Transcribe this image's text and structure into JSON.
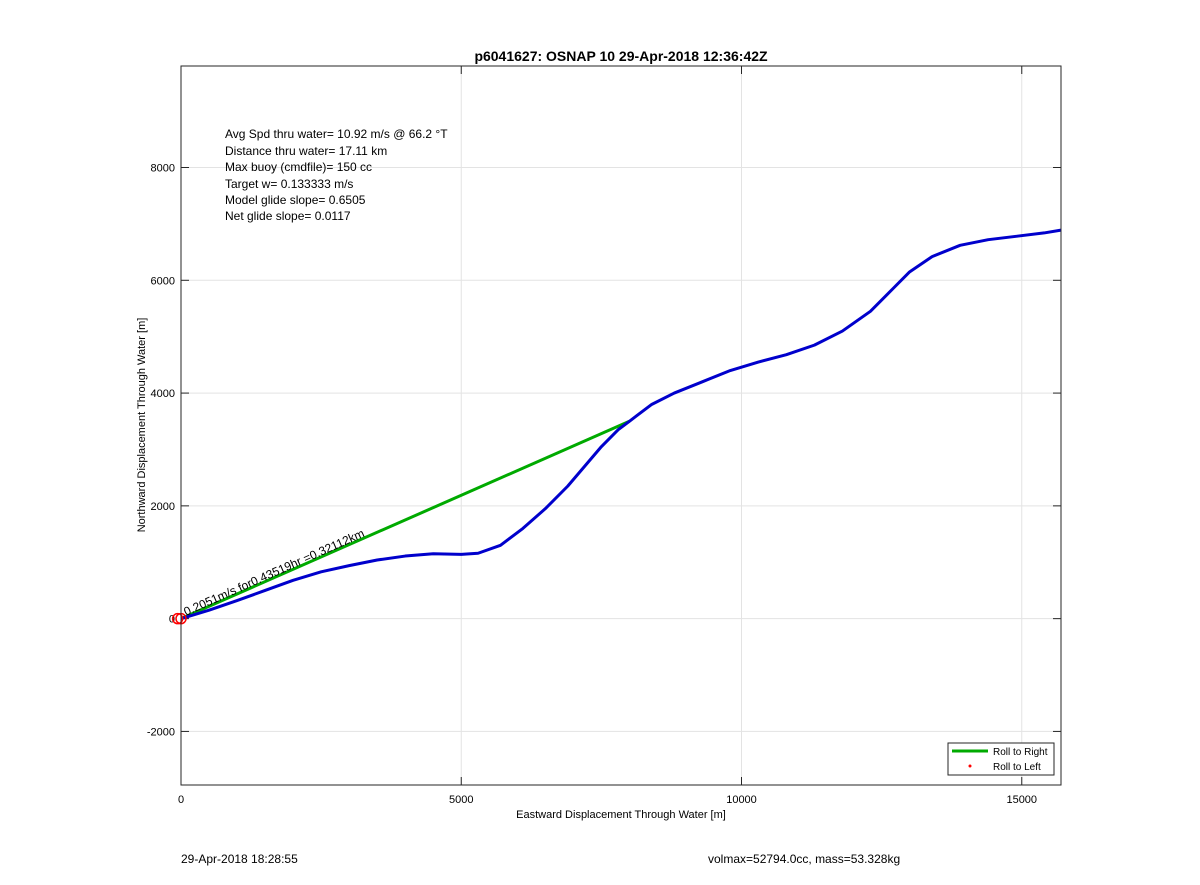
{
  "chart_data": {
    "type": "line",
    "title": "p6041627: OSNAP 10 29-Apr-2018 12:36:42Z",
    "xlabel": "Eastward Displacement Through Water [m]",
    "ylabel": "Northward Displacement Through Water [m]",
    "xlim": [
      0,
      15700
    ],
    "ylim": [
      -2950,
      9800
    ],
    "xticks": [
      0,
      5000,
      10000,
      15000
    ],
    "yticks": [
      -2000,
      0,
      2000,
      4000,
      6000,
      8000
    ],
    "grid": true,
    "legend_position": "bottom-right",
    "legend": [
      {
        "label": "Roll to Right",
        "color": "#00aa00",
        "style": "line"
      },
      {
        "label": "Roll to Left",
        "color": "#ff0000",
        "style": "dot"
      }
    ],
    "info_lines": [
      "Avg Spd thru water= 10.92 m/s @  66.2 °T",
      "Distance thru water= 17.11 km",
      "Max buoy (cmdfile)= 150 cc",
      "Target w= 0.133333 m/s",
      "Model glide slope= 0.6505",
      "Net glide slope= 0.0117"
    ],
    "annotation": {
      "text": "0.2051m/s for0.43519hr =0.32112km",
      "x": 100,
      "y": 0
    },
    "series": [
      {
        "name": "Roll to Right",
        "color": "#00aa00",
        "x": [
          0,
          8000
        ],
        "y": [
          0,
          3500
        ]
      },
      {
        "color": "#0000cc",
        "x": [
          0,
          500,
          1000,
          1500,
          2000,
          2500,
          3000,
          3500,
          4000,
          4500,
          5000,
          5300,
          5700,
          6100,
          6500,
          6900,
          7200,
          7500,
          7800,
          8000,
          8400,
          8800,
          9300,
          9800,
          10300,
          10800,
          11300,
          11800,
          12300,
          12700,
          13000,
          13400,
          13900,
          14400,
          14900,
          15400,
          15700
        ],
        "y": [
          0,
          150,
          320,
          500,
          680,
          830,
          940,
          1040,
          1110,
          1150,
          1140,
          1160,
          1300,
          1600,
          1950,
          2350,
          2700,
          3050,
          3350,
          3500,
          3800,
          4000,
          4200,
          4400,
          4550,
          4680,
          4850,
          5100,
          5450,
          5850,
          6150,
          6420,
          6620,
          6720,
          6780,
          6840,
          6890
        ]
      }
    ],
    "markers": [
      {
        "type": "circle",
        "color": "#ff0000",
        "x": 0,
        "y": 0
      },
      {
        "type": "circle",
        "color": "#ff0000",
        "x": -60,
        "y": 0
      }
    ]
  },
  "footer": {
    "timestamp": "29-Apr-2018 18:28:55",
    "vol_mass": "volmax=52794.0cc, mass=53.328kg"
  }
}
